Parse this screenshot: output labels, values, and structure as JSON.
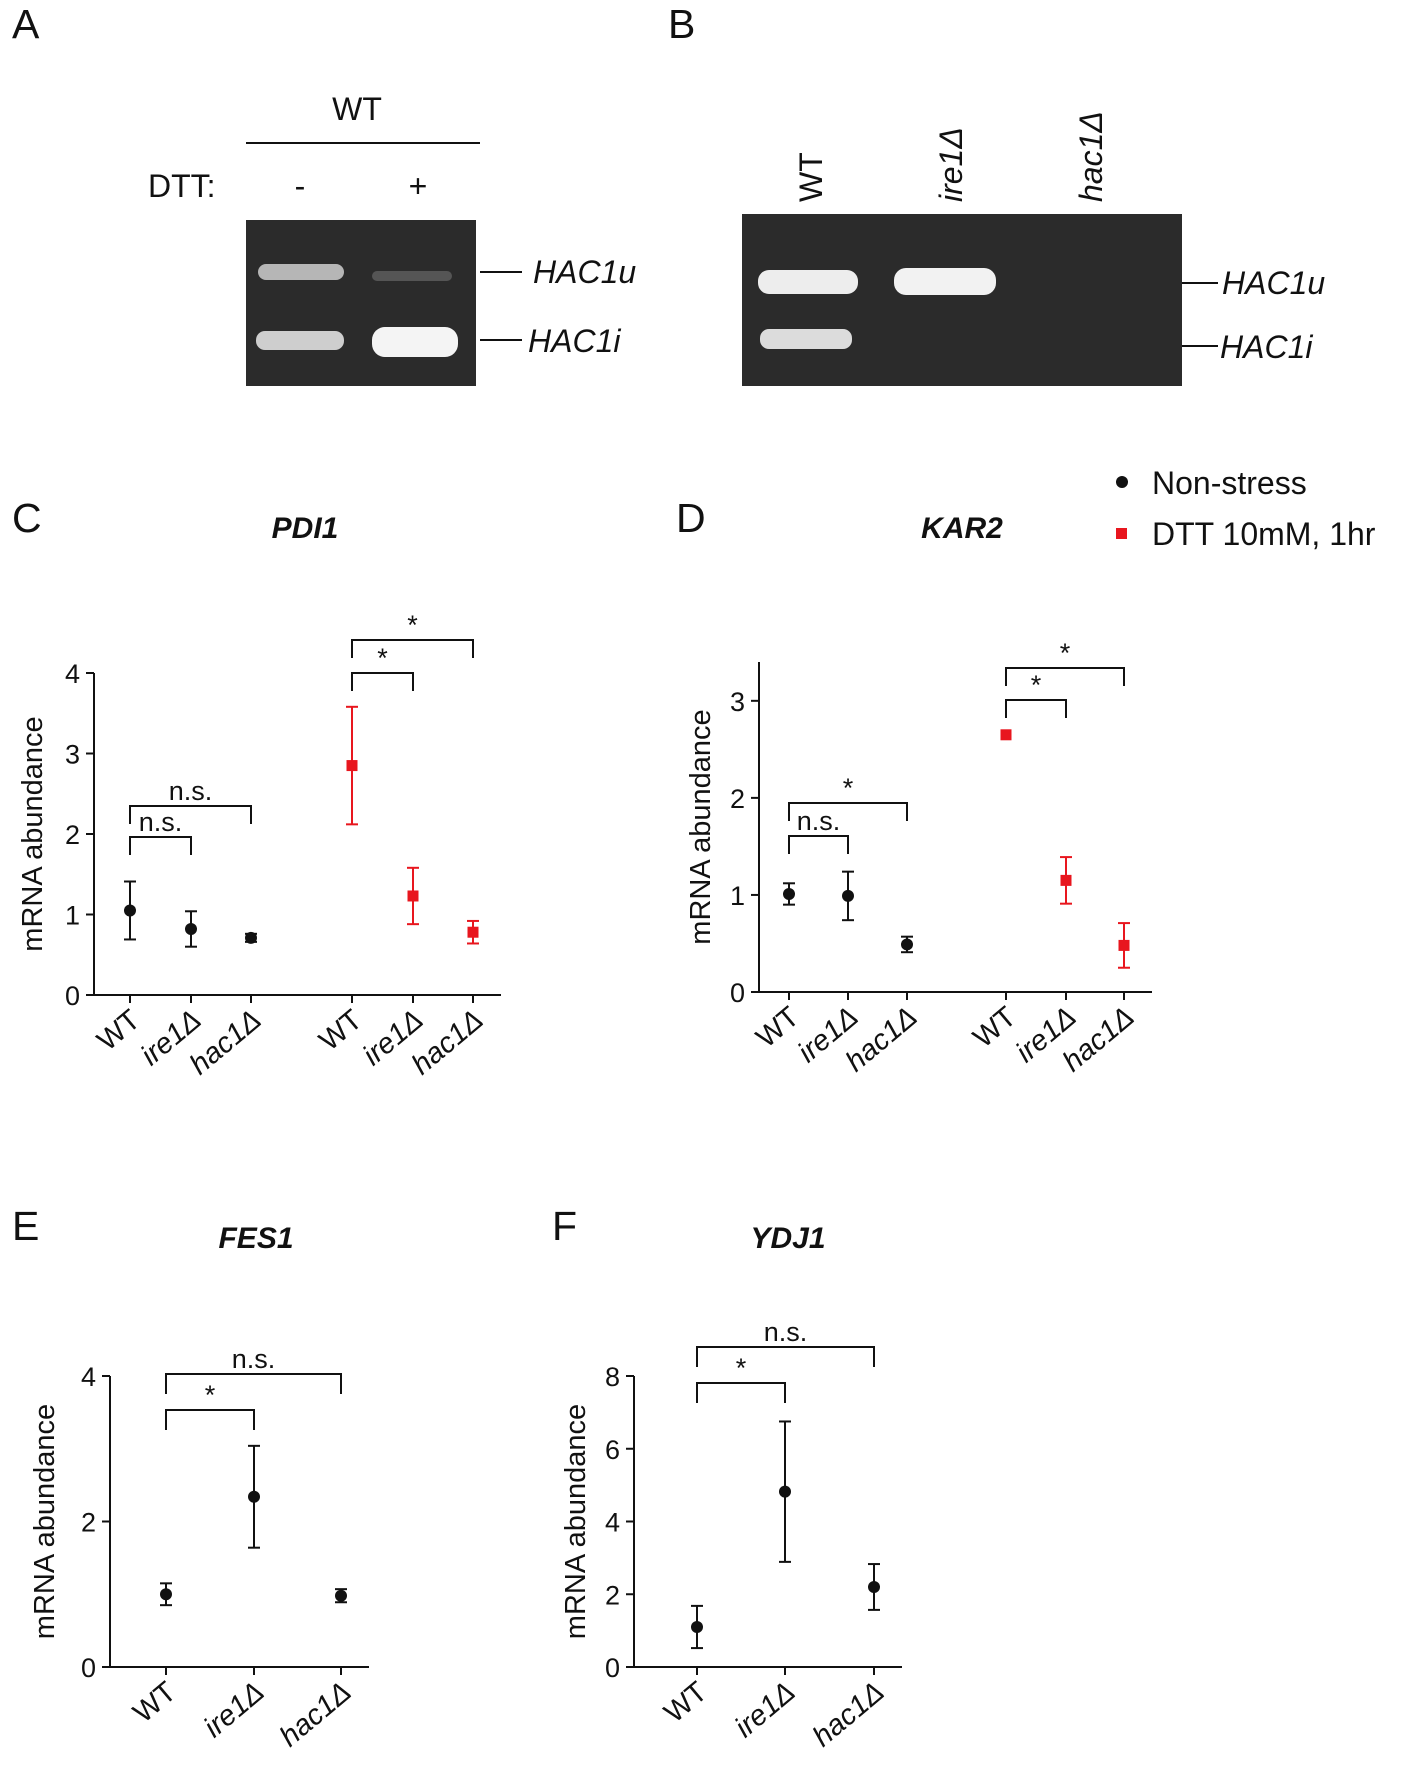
{
  "panels": {
    "A": {
      "letter": "A",
      "strain": "WT",
      "dtt_label": "DTT:",
      "lanes": [
        "-",
        "+"
      ],
      "bands": [
        "HAC1u",
        "HAC1i"
      ]
    },
    "B": {
      "letter": "B",
      "lanes": [
        "WT",
        "ire1Δ",
        "hac1Δ"
      ],
      "bands": [
        "HAC1u",
        "HAC1i"
      ]
    }
  },
  "legend": {
    "non_stress": "Non-stress",
    "dtt": "DTT 10mM, 1hr"
  },
  "colors": {
    "non_stress": "#111111",
    "dtt": "#e8161e",
    "gel_background": "#2b2b2b",
    "gel_band": "#e6e6e6"
  },
  "chart_data": [
    {
      "panel": "C",
      "type": "scatter",
      "title": "PDI1",
      "ylabel": "mRNA abundance",
      "ylim": [
        0,
        4
      ],
      "yticks": [
        0,
        1,
        2,
        3,
        4
      ],
      "categories": [
        "WT",
        "ire1Δ",
        "hac1Δ",
        "WT",
        "ire1Δ",
        "hac1Δ"
      ],
      "series": [
        {
          "name": "Non-stress",
          "color": "#111111",
          "marker": "circle",
          "category_index": [
            0,
            1,
            2
          ],
          "values": [
            1.05,
            0.82,
            0.71
          ],
          "errors": [
            0.36,
            0.22,
            0.05
          ]
        },
        {
          "name": "DTT 10mM, 1hr",
          "color": "#e8161e",
          "marker": "square",
          "category_index": [
            3,
            4,
            5
          ],
          "values": [
            2.85,
            1.23,
            0.78
          ],
          "errors": [
            0.73,
            0.35,
            0.14
          ]
        }
      ],
      "significance": [
        {
          "from": 0,
          "to": 1,
          "label": "n.s."
        },
        {
          "from": 0,
          "to": 2,
          "label": "n.s."
        },
        {
          "from": 3,
          "to": 4,
          "label": "*"
        },
        {
          "from": 3,
          "to": 5,
          "label": "*"
        }
      ]
    },
    {
      "panel": "D",
      "type": "scatter",
      "title": "KAR2",
      "ylabel": "mRNA abundance",
      "ylim": [
        0,
        3.4
      ],
      "yticks": [
        0,
        1,
        2,
        3
      ],
      "categories": [
        "WT",
        "ire1Δ",
        "hac1Δ",
        "WT",
        "ire1Δ",
        "hac1Δ"
      ],
      "series": [
        {
          "name": "Non-stress",
          "color": "#111111",
          "marker": "circle",
          "category_index": [
            0,
            1,
            2
          ],
          "values": [
            1.01,
            0.99,
            0.49
          ],
          "errors": [
            0.11,
            0.25,
            0.08
          ]
        },
        {
          "name": "DTT 10mM, 1hr",
          "color": "#e8161e",
          "marker": "square",
          "category_index": [
            3,
            4,
            5
          ],
          "values": [
            2.65,
            1.15,
            0.48
          ],
          "errors": [
            0.0,
            0.24,
            0.23
          ]
        }
      ],
      "significance": [
        {
          "from": 0,
          "to": 1,
          "label": "n.s."
        },
        {
          "from": 0,
          "to": 2,
          "label": "*"
        },
        {
          "from": 3,
          "to": 4,
          "label": "*"
        },
        {
          "from": 3,
          "to": 5,
          "label": "*"
        }
      ]
    },
    {
      "panel": "E",
      "type": "scatter",
      "title": "FES1",
      "ylabel": "mRNA abundance",
      "ylim": [
        0,
        4
      ],
      "yticks": [
        0,
        2,
        4
      ],
      "categories": [
        "WT",
        "ire1Δ",
        "hac1Δ"
      ],
      "series": [
        {
          "name": "Non-stress",
          "color": "#111111",
          "marker": "circle",
          "category_index": [
            0,
            1,
            2
          ],
          "values": [
            1.0,
            2.34,
            0.98
          ],
          "errors": [
            0.15,
            0.7,
            0.09
          ]
        }
      ],
      "significance": [
        {
          "from": 0,
          "to": 1,
          "label": "*"
        },
        {
          "from": 0,
          "to": 2,
          "label": "n.s."
        }
      ]
    },
    {
      "panel": "F",
      "type": "scatter",
      "title": "YDJ1",
      "ylabel": "mRNA abundance",
      "ylim": [
        0,
        8
      ],
      "yticks": [
        0,
        2,
        4,
        6,
        8
      ],
      "categories": [
        "WT",
        "ire1Δ",
        "hac1Δ"
      ],
      "series": [
        {
          "name": "Non-stress",
          "color": "#111111",
          "marker": "circle",
          "category_index": [
            0,
            1,
            2
          ],
          "values": [
            1.1,
            4.82,
            2.2
          ],
          "errors": [
            0.58,
            1.93,
            0.63
          ]
        }
      ],
      "significance": [
        {
          "from": 0,
          "to": 1,
          "label": "*"
        },
        {
          "from": 0,
          "to": 2,
          "label": "n.s."
        }
      ]
    }
  ]
}
